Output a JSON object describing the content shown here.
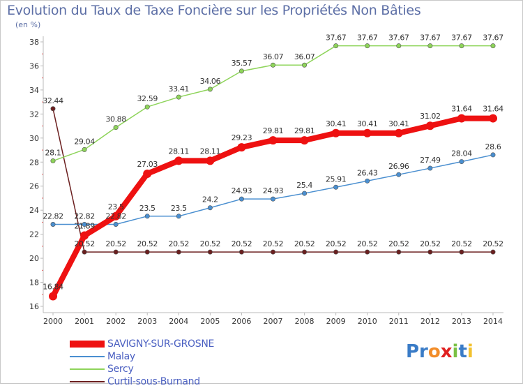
{
  "title": "Evolution du Taux de Taxe Foncière sur les Propriétés Non Bâties",
  "unit": "(en %)",
  "logo": {
    "parts": [
      "Pr",
      "o",
      "x",
      "i",
      "t",
      "i"
    ],
    "colors": [
      "#3a7cc7",
      "#f28c28",
      "#e02020",
      "#7ac143",
      "#3a7cc7",
      "#f2c12e"
    ]
  },
  "chart_data": {
    "type": "line",
    "title": "Evolution du Taux de Taxe Foncière sur les Propriétés Non Bâties",
    "ylabel": "(en %)",
    "xlabel": "",
    "ylim": [
      16,
      38
    ],
    "yticks": [
      16,
      18,
      20,
      22,
      24,
      26,
      28,
      30,
      32,
      34,
      36,
      38
    ],
    "categories": [
      "2000",
      "2001",
      "2002",
      "2003",
      "2004",
      "2005",
      "2006",
      "2007",
      "2008",
      "2009",
      "2010",
      "2011",
      "2012",
      "2013",
      "2014"
    ],
    "series": [
      {
        "name": "Curtil-sous-Burnand",
        "color": "#6b1f1f",
        "values": [
          32.44,
          20.52,
          20.52,
          20.52,
          20.52,
          20.52,
          20.52,
          20.52,
          20.52,
          20.52,
          20.52,
          20.52,
          20.52,
          20.52,
          20.52
        ],
        "labels": [
          "32.44",
          "20.52",
          "20.52",
          "20.52",
          "20.52",
          "20.52",
          "20.52",
          "20.52",
          "20.52",
          "20.52",
          "20.52",
          "20.52",
          "20.52",
          "20.52",
          "20.52"
        ]
      },
      {
        "name": "Malay",
        "color": "#4a8fd0",
        "values": [
          22.82,
          22.82,
          22.82,
          23.5,
          23.5,
          24.2,
          24.93,
          24.93,
          25.4,
          25.91,
          26.43,
          26.96,
          27.49,
          28.04,
          28.6
        ],
        "labels": [
          "22.82",
          "22.82",
          "22.82",
          "23.5",
          "23.5",
          "24.2",
          "24.93",
          "24.93",
          "25.4",
          "25.91",
          "26.43",
          "26.96",
          "27.49",
          "28.04",
          "28.6"
        ]
      },
      {
        "name": "Sercy",
        "color": "#8ed45a",
        "values": [
          28.1,
          29.04,
          30.88,
          32.59,
          33.41,
          34.06,
          35.57,
          36.07,
          36.07,
          37.67,
          37.67,
          37.67,
          37.67,
          37.67,
          37.67
        ],
        "labels": [
          "28.1",
          "29.04",
          "30.88",
          "32.59",
          "33.41",
          "34.06",
          "35.57",
          "36.07",
          "36.07",
          "37.67",
          "37.67",
          "37.67",
          "37.67",
          "37.67",
          "37.67"
        ]
      },
      {
        "name": "SAVIGNY-SUR-GROSNE",
        "color": "#ee1111",
        "values": [
          16.84,
          21.89,
          23.5,
          27.03,
          28.11,
          28.11,
          29.23,
          29.81,
          29.81,
          30.41,
          30.41,
          30.41,
          31.02,
          31.64,
          31.64
        ],
        "labels": [
          "16.84",
          "21.89",
          "23.5",
          "27.03",
          "28.11",
          "28.11",
          "29.23",
          "29.81",
          "29.81",
          "30.41",
          "30.41",
          "30.41",
          "31.02",
          "31.64",
          "31.64"
        ]
      }
    ],
    "legend": [
      "SAVIGNY-SUR-GROSNE",
      "Malay",
      "Sercy",
      "Curtil-sous-Burnand"
    ],
    "legend_position": "bottom-left",
    "grid": false
  }
}
